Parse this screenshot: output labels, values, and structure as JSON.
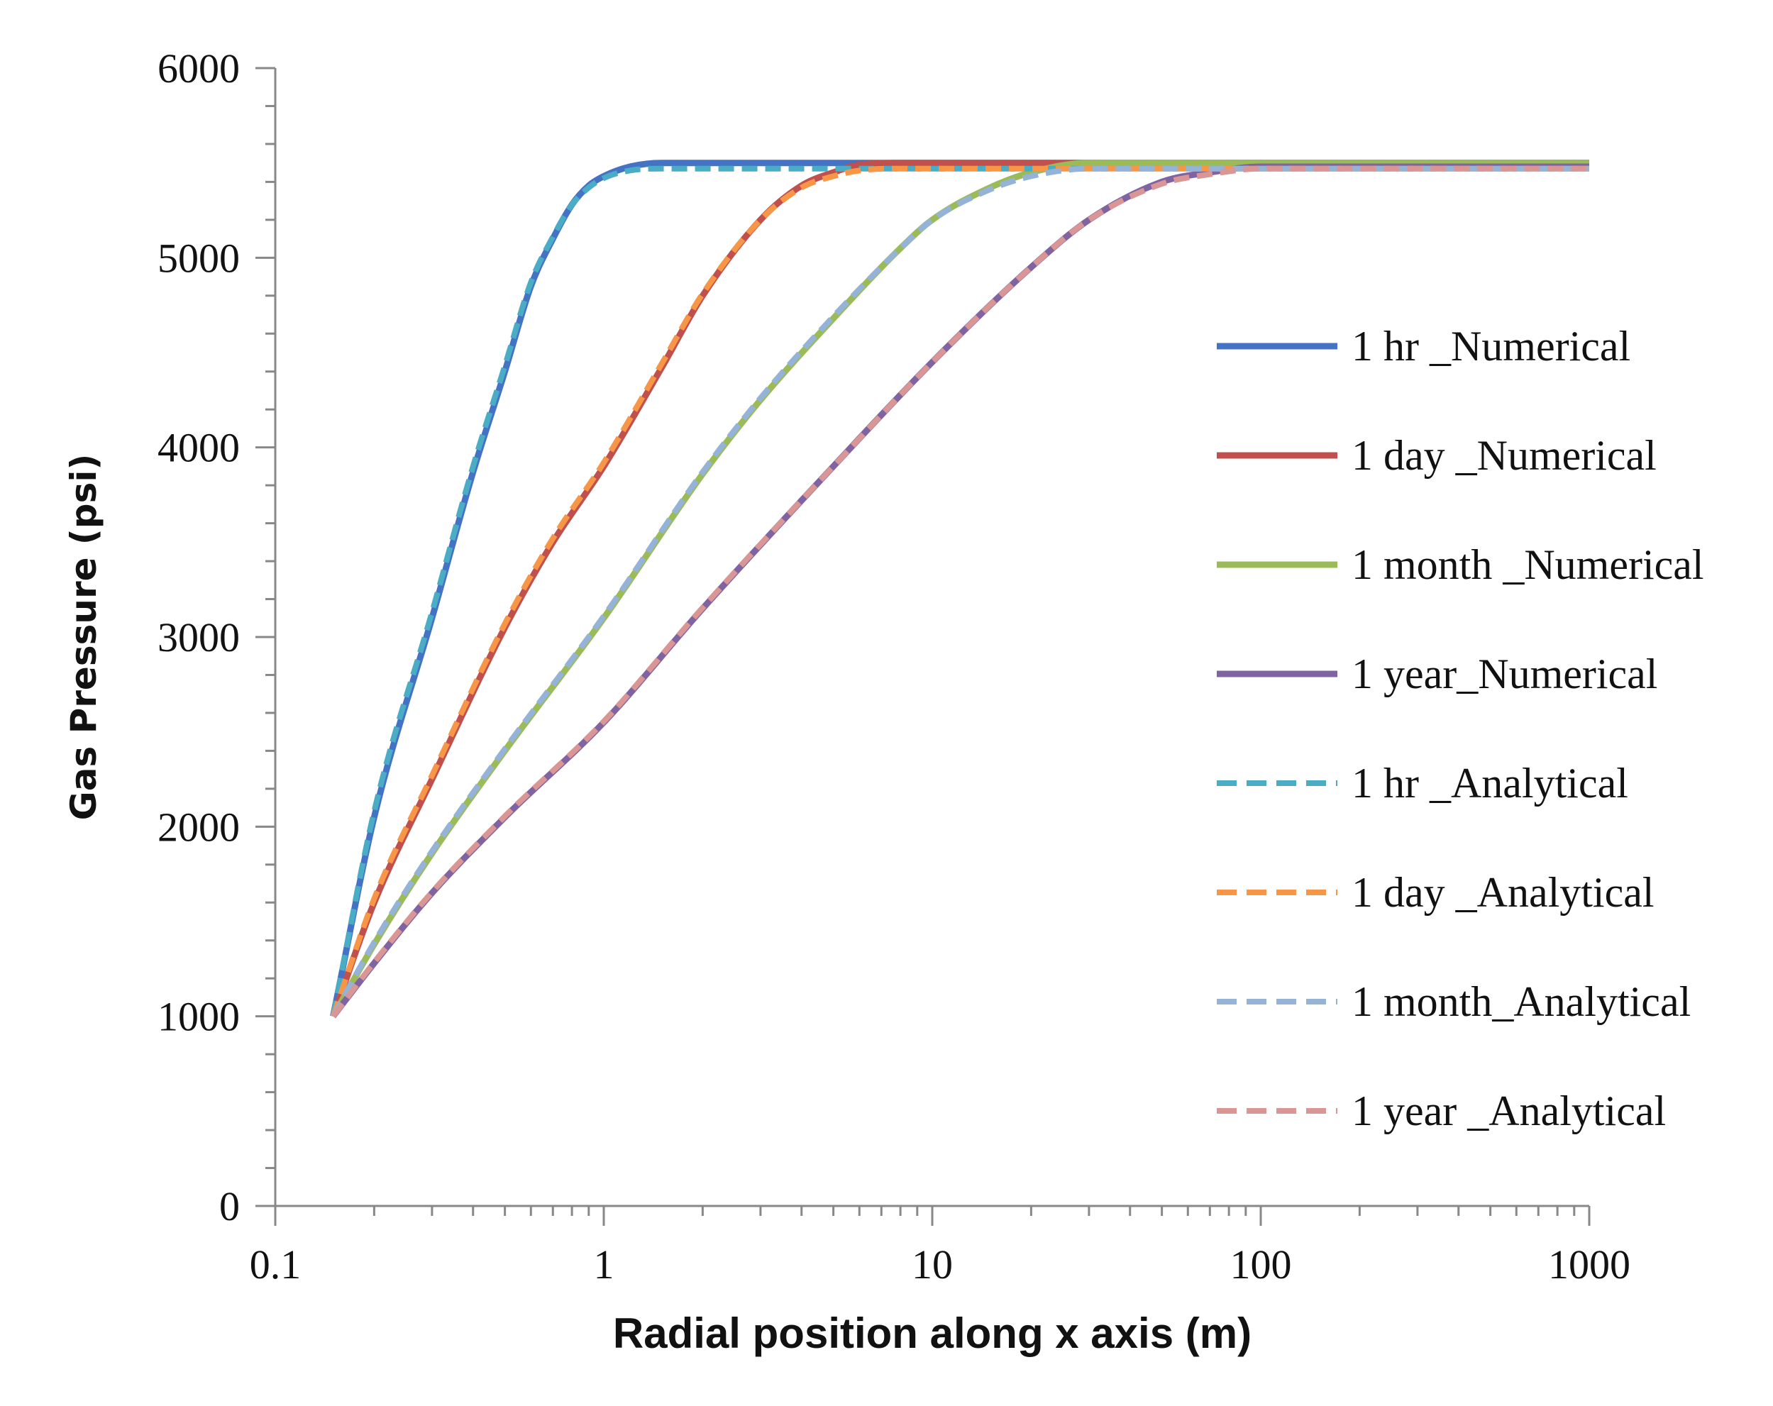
{
  "chart_data": {
    "type": "line",
    "title": "",
    "xlabel": "Radial position along x axis (m)",
    "ylabel": "Gas Pressure (psi)",
    "xscale": "log",
    "xlim": [
      0.1,
      1000
    ],
    "ylim": [
      0,
      6000
    ],
    "x_ticks": [
      "0.1",
      "1",
      "10",
      "100",
      "1000"
    ],
    "y_ticks": [
      "0",
      "1000",
      "2000",
      "3000",
      "4000",
      "5000",
      "6000"
    ],
    "legend_position": "right",
    "series": [
      {
        "name": "1 hr _Numerical",
        "style": "solid",
        "color": "#4472C4",
        "x": [
          0.15,
          0.2,
          0.3,
          0.4,
          0.5,
          0.6,
          0.7,
          0.8,
          0.9,
          1.0,
          1.2,
          1.5,
          2,
          3,
          5,
          10,
          100,
          1000
        ],
        "y": [
          1000,
          2050,
          3100,
          3870,
          4400,
          4850,
          5100,
          5280,
          5380,
          5430,
          5480,
          5500,
          5500,
          5500,
          5500,
          5500,
          5500,
          5500
        ]
      },
      {
        "name": "1 day _Numerical",
        "style": "solid",
        "color": "#C0504D",
        "x": [
          0.15,
          0.2,
          0.3,
          0.5,
          0.7,
          1.0,
          1.5,
          2,
          3,
          4,
          5,
          6,
          8,
          10,
          20,
          100,
          1000
        ],
        "y": [
          1000,
          1600,
          2250,
          3050,
          3500,
          3900,
          4420,
          4800,
          5200,
          5380,
          5450,
          5490,
          5500,
          5500,
          5500,
          5500,
          5500
        ]
      },
      {
        "name": "1 month _Numerical",
        "style": "solid",
        "color": "#9BBB59",
        "x": [
          0.15,
          0.2,
          0.3,
          0.5,
          1,
          2,
          3,
          5,
          8,
          10,
          15,
          20,
          30,
          50,
          100,
          1000
        ],
        "y": [
          1000,
          1380,
          1860,
          2400,
          3100,
          3860,
          4250,
          4680,
          5050,
          5200,
          5370,
          5450,
          5500,
          5500,
          5500,
          5500
        ]
      },
      {
        "name": "1 year_Numerical",
        "style": "solid",
        "color": "#8064A2",
        "x": [
          0.15,
          0.2,
          0.3,
          0.5,
          1,
          2,
          5,
          10,
          20,
          30,
          50,
          70,
          100,
          200,
          1000
        ],
        "y": [
          1000,
          1280,
          1650,
          2050,
          2550,
          3150,
          3900,
          4450,
          4950,
          5200,
          5400,
          5450,
          5480,
          5480,
          5480
        ]
      },
      {
        "name": "1 hr _Analytical",
        "style": "dash",
        "color": "#4BACC6",
        "x": [
          0.15,
          0.2,
          0.3,
          0.4,
          0.5,
          0.6,
          0.7,
          0.8,
          0.9,
          1.0,
          1.2,
          1.5,
          2,
          3,
          5,
          10,
          100,
          1000
        ],
        "y": [
          1000,
          2080,
          3130,
          3900,
          4430,
          4870,
          5110,
          5280,
          5370,
          5420,
          5460,
          5470,
          5470,
          5470,
          5470,
          5470,
          5470,
          5470
        ]
      },
      {
        "name": "1 day _Analytical",
        "style": "dash",
        "color": "#F79646",
        "x": [
          0.15,
          0.2,
          0.3,
          0.5,
          0.7,
          1.0,
          1.5,
          2,
          3,
          4,
          5,
          6,
          8,
          10,
          20,
          100,
          1000
        ],
        "y": [
          1000,
          1620,
          2270,
          3070,
          3520,
          3920,
          4440,
          4810,
          5200,
          5370,
          5430,
          5460,
          5470,
          5470,
          5470,
          5470,
          5470
        ]
      },
      {
        "name": "1 month_Analytical",
        "style": "dash",
        "color": "#95B3D7",
        "x": [
          0.15,
          0.2,
          0.3,
          0.5,
          1,
          2,
          3,
          5,
          8,
          10,
          15,
          20,
          30,
          50,
          100,
          1000
        ],
        "y": [
          1000,
          1390,
          1870,
          2410,
          3110,
          3870,
          4260,
          4690,
          5050,
          5200,
          5360,
          5430,
          5470,
          5470,
          5470,
          5470
        ]
      },
      {
        "name": "1 year _Analytical",
        "style": "dash",
        "color": "#D99694",
        "x": [
          0.15,
          0.2,
          0.3,
          0.5,
          1,
          2,
          5,
          10,
          20,
          30,
          50,
          70,
          100,
          200,
          1000
        ],
        "y": [
          1000,
          1285,
          1655,
          2055,
          2555,
          3155,
          3900,
          4450,
          4950,
          5200,
          5390,
          5440,
          5470,
          5470,
          5470
        ]
      }
    ]
  }
}
